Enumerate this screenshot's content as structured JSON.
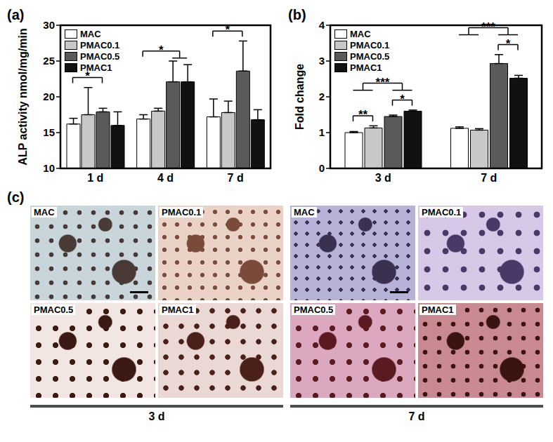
{
  "chart_data": [
    {
      "type": "bar",
      "title": "(a)",
      "ylabel": "ALP activity nmol/mg/min",
      "categories": [
        "1 d",
        "4 d",
        "7 d"
      ],
      "series": [
        {
          "name": "MAC",
          "color": "#ffffff",
          "values": [
            16.2,
            16.9,
            17.2
          ],
          "errors": [
            0.8,
            0.6,
            2.5
          ]
        },
        {
          "name": "PMAC0.1",
          "color": "#c8c8c8",
          "values": [
            17.5,
            18.0,
            17.8
          ],
          "errors": [
            3.8,
            0.4,
            1.6
          ]
        },
        {
          "name": "PMAC0.5",
          "color": "#5a5a5a",
          "values": [
            17.9,
            22.1,
            23.6
          ],
          "errors": [
            0.5,
            2.9,
            4.2
          ]
        },
        {
          "name": "PMAC1",
          "color": "#111111",
          "values": [
            16.0,
            22.1,
            16.8
          ],
          "errors": [
            1.9,
            2.4,
            1.4
          ]
        }
      ],
      "ylim": [
        10,
        30
      ],
      "yticks": [
        10,
        15,
        20,
        25,
        30
      ],
      "legend": "upper left",
      "significance": [
        {
          "category": "1 d",
          "from": [
            "MAC"
          ],
          "to": [
            "PMAC0.5"
          ],
          "label": "*"
        },
        {
          "category": "4 d",
          "from": [
            "MAC"
          ],
          "to": [
            "PMAC0.5",
            "PMAC1"
          ],
          "label": "*"
        },
        {
          "category": "7 d",
          "from": [
            "MAC"
          ],
          "to": [
            "PMAC0.5"
          ],
          "label": "*"
        }
      ]
    },
    {
      "type": "bar",
      "title": "(b)",
      "ylabel": "Fold change",
      "categories": [
        "3 d",
        "7 d"
      ],
      "series": [
        {
          "name": "MAC",
          "color": "#ffffff",
          "values": [
            1.0,
            1.12
          ],
          "errors": [
            0.03,
            0.04
          ]
        },
        {
          "name": "PMAC0.1",
          "color": "#c8c8c8",
          "values": [
            1.13,
            1.07
          ],
          "errors": [
            0.06,
            0.04
          ]
        },
        {
          "name": "PMAC0.5",
          "color": "#5a5a5a",
          "values": [
            1.45,
            2.93
          ],
          "errors": [
            0.04,
            0.25
          ]
        },
        {
          "name": "PMAC1",
          "color": "#111111",
          "values": [
            1.6,
            2.52
          ],
          "errors": [
            0.03,
            0.08
          ]
        }
      ],
      "ylim": [
        0,
        4
      ],
      "yticks": [
        0,
        1,
        2,
        3,
        4
      ],
      "legend": "upper left",
      "significance": [
        {
          "category": "3 d",
          "from": [
            "MAC"
          ],
          "to": [
            "PMAC0.1"
          ],
          "label": "**"
        },
        {
          "category": "3 d",
          "from": [
            "PMAC0.5"
          ],
          "to": [
            "PMAC1"
          ],
          "label": "*"
        },
        {
          "category": "3 d",
          "from": [
            "MAC",
            "PMAC0.1"
          ],
          "to": [
            "PMAC0.5",
            "PMAC1"
          ],
          "label": "***"
        },
        {
          "category": "7 d",
          "from": [
            "PMAC0.5"
          ],
          "to": [
            "PMAC1"
          ],
          "label": "*"
        },
        {
          "category": "7 d",
          "from": [
            "MAC",
            "PMAC0.1"
          ],
          "to": [
            "PMAC0.5",
            "PMAC1"
          ],
          "label": "***"
        }
      ]
    }
  ],
  "panel_c": {
    "title": "(c)",
    "groups": [
      {
        "label": "3 d",
        "images": [
          "MAC",
          "PMAC0.1",
          "PMAC0.5",
          "PMAC1"
        ]
      },
      {
        "label": "7 d",
        "images": [
          "MAC",
          "PMAC0.1",
          "PMAC0.5",
          "PMAC1"
        ]
      }
    ]
  }
}
